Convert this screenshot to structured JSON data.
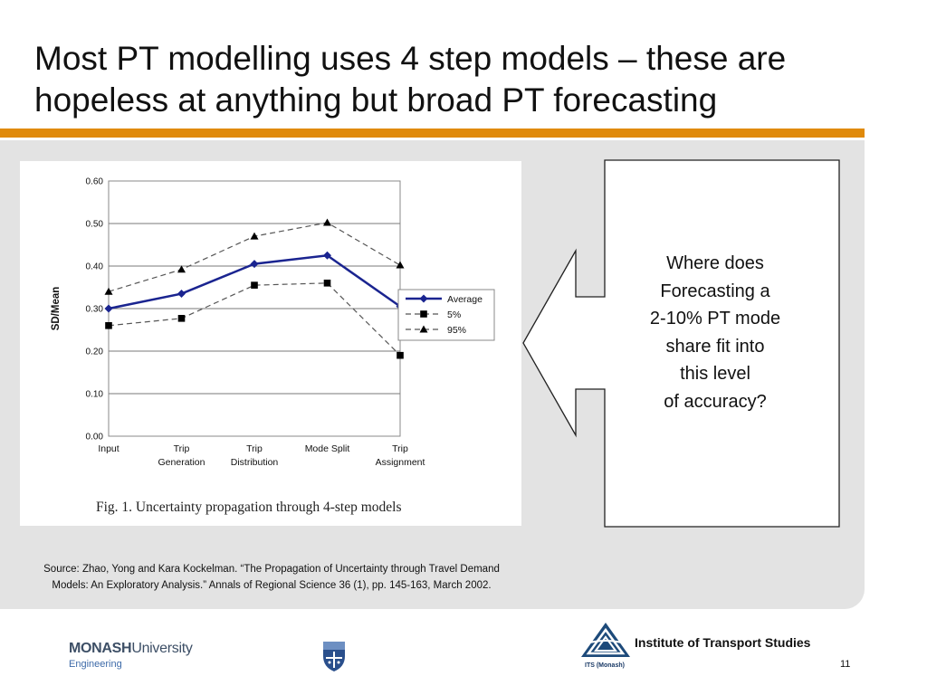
{
  "slide": {
    "title_line1": "Most PT modelling uses 4 step models – these are",
    "title_line2": "hopeless at anything but broad PT forecasting",
    "callout_lines": [
      "Where does",
      "Forecasting a",
      "2-10% PT mode",
      "share fit into",
      "this level",
      "of accuracy?"
    ],
    "source_line1": "Source: Zhao, Yong and Kara Kockelman. “The Propagation of Uncertainty through Travel Demand",
    "source_line2": "Models: An Exploratory Analysis.” Annals of Regional Science 36 (1), pp. 145-163, March 2002.",
    "footer": {
      "monash_bold": "MONASH",
      "monash_rest": "University",
      "faculty": "Engineering",
      "its_name": "Institute of Transport Studies",
      "its_logo_label": "ITS (Monash)",
      "page_number": "11"
    },
    "colors": {
      "accent_rule": "#e08a0b",
      "panel": "#e3e3e3",
      "series_average": "#1a2490"
    }
  },
  "chart_data": {
    "type": "line",
    "caption": "Fig. 1.  Uncertainty propagation through 4-step models",
    "ylabel": "SD/Mean",
    "xlabel": "",
    "ylim": [
      0,
      0.6
    ],
    "yticks": [
      "0.00",
      "0.10",
      "0.20",
      "0.30",
      "0.40",
      "0.50",
      "0.60"
    ],
    "categories": [
      [
        "Input"
      ],
      [
        "Trip",
        "Generation"
      ],
      [
        "Trip",
        "Distribution"
      ],
      [
        "Mode Split"
      ],
      [
        "Trip",
        "Assignment"
      ]
    ],
    "grid": true,
    "legend_position": "right",
    "series": [
      {
        "name": "Average",
        "values": [
          0.3,
          0.335,
          0.405,
          0.425,
          0.305
        ],
        "marker": "diamond",
        "style": "solid",
        "color": "#1a2490"
      },
      {
        "name": "5%",
        "values": [
          0.26,
          0.277,
          0.355,
          0.36,
          0.19
        ],
        "marker": "square",
        "style": "dashed",
        "color": "#000000"
      },
      {
        "name": "95%",
        "values": [
          0.34,
          0.392,
          0.47,
          0.502,
          0.402
        ],
        "marker": "triangle",
        "style": "dashed",
        "color": "#000000"
      }
    ]
  }
}
